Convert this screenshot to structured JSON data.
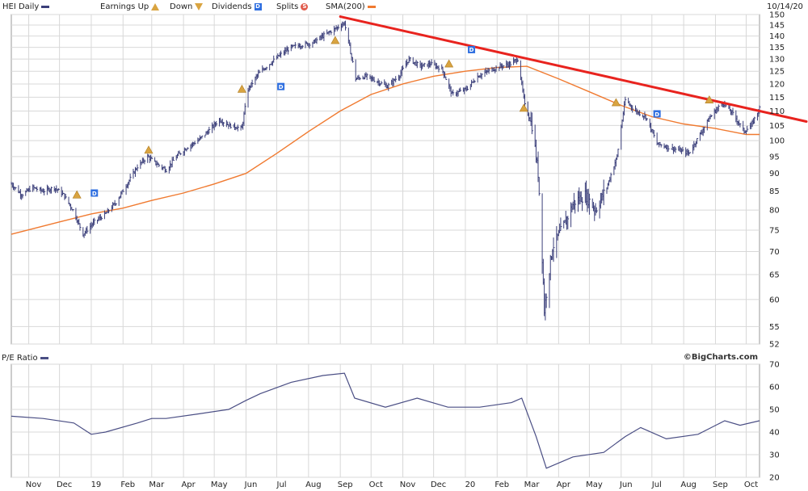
{
  "legend": {
    "symbol_label": "HEI Daily",
    "earnings_up_label": "Earnings Up",
    "earnings_down_label": "Down",
    "dividends_label": "Dividends",
    "dividend_marker": "D",
    "splits_label": "Splits",
    "split_marker": "S",
    "sma_label": "SMA(200)",
    "date": "10/14/20"
  },
  "pe_panel": {
    "label": "P/E Ratio"
  },
  "credit": "©BigCharts.com",
  "colors": {
    "price_bars": "#3b3f7a",
    "sma": "#f07a30",
    "trendline": "#e8231e",
    "earnings_marker": "#d9a441",
    "dividend_marker": "#2f6fe0",
    "grid": "#d8d8d8",
    "pe_line": "#4a4e84"
  },
  "chart_data": [
    {
      "type": "ohlc",
      "title": "HEI Daily",
      "y_scale": "log",
      "ylim": [
        52,
        150
      ],
      "y_ticks": [
        150,
        145,
        140,
        135,
        130,
        125,
        120,
        115,
        110,
        105,
        100,
        95,
        90,
        85,
        80,
        75,
        70,
        65,
        60,
        55,
        52
      ],
      "x_ticks": [
        {
          "label": "Nov",
          "date": "2018-11-01"
        },
        {
          "label": "Dec",
          "date": "2018-12-01"
        },
        {
          "label": "19",
          "date": "2019-01-01"
        },
        {
          "label": "Feb",
          "date": "2019-02-01"
        },
        {
          "label": "Mar",
          "date": "2019-03-01"
        },
        {
          "label": "Apr",
          "date": "2019-04-01"
        },
        {
          "label": "May",
          "date": "2019-05-01"
        },
        {
          "label": "Jun",
          "date": "2019-06-01"
        },
        {
          "label": "Jul",
          "date": "2019-07-01"
        },
        {
          "label": "Aug",
          "date": "2019-08-01"
        },
        {
          "label": "Sep",
          "date": "2019-09-01"
        },
        {
          "label": "Oct",
          "date": "2019-10-01"
        },
        {
          "label": "Nov",
          "date": "2019-11-01"
        },
        {
          "label": "Dec",
          "date": "2019-12-01"
        },
        {
          "label": "20",
          "date": "2020-01-01"
        },
        {
          "label": "Feb",
          "date": "2020-02-01"
        },
        {
          "label": "Mar",
          "date": "2020-03-01"
        },
        {
          "label": "Apr",
          "date": "2020-04-01"
        },
        {
          "label": "May",
          "date": "2020-05-01"
        },
        {
          "label": "Jun",
          "date": "2020-06-01"
        },
        {
          "label": "Jul",
          "date": "2020-07-01"
        },
        {
          "label": "Aug",
          "date": "2020-08-01"
        },
        {
          "label": "Sep",
          "date": "2020-09-01"
        },
        {
          "label": "Oct",
          "date": "2020-10-01"
        }
      ],
      "xlim": [
        "2018-10-15",
        "2020-10-14"
      ],
      "price_series": {
        "name": "HEI Daily",
        "points": [
          [
            "2018-10-15",
            87
          ],
          [
            "2018-10-25",
            84
          ],
          [
            "2018-11-05",
            86
          ],
          [
            "2018-11-15",
            85
          ],
          [
            "2018-11-26",
            86
          ],
          [
            "2018-12-05",
            84
          ],
          [
            "2018-12-14",
            80
          ],
          [
            "2018-12-24",
            74
          ],
          [
            "2019-01-04",
            77
          ],
          [
            "2019-01-15",
            79
          ],
          [
            "2019-01-25",
            82
          ],
          [
            "2019-02-05",
            87
          ],
          [
            "2019-02-15",
            92
          ],
          [
            "2019-02-25",
            95
          ],
          [
            "2019-03-05",
            93
          ],
          [
            "2019-03-15",
            91
          ],
          [
            "2019-03-25",
            95
          ],
          [
            "2019-04-05",
            98
          ],
          [
            "2019-04-15",
            100
          ],
          [
            "2019-04-25",
            103
          ],
          [
            "2019-05-06",
            107
          ],
          [
            "2019-05-16",
            105
          ],
          [
            "2019-05-28",
            104
          ],
          [
            "2019-06-03",
            118
          ],
          [
            "2019-06-13",
            124
          ],
          [
            "2019-06-24",
            128
          ],
          [
            "2019-07-05",
            132
          ],
          [
            "2019-07-15",
            135
          ],
          [
            "2019-07-25",
            136
          ],
          [
            "2019-08-05",
            137
          ],
          [
            "2019-08-15",
            140
          ],
          [
            "2019-08-26",
            143
          ],
          [
            "2019-09-05",
            146
          ],
          [
            "2019-09-16",
            122
          ],
          [
            "2019-09-26",
            123
          ],
          [
            "2019-10-07",
            121
          ],
          [
            "2019-10-17",
            119
          ],
          [
            "2019-10-28",
            123
          ],
          [
            "2019-11-07",
            130
          ],
          [
            "2019-11-18",
            127
          ],
          [
            "2019-11-28",
            128
          ],
          [
            "2019-12-09",
            126
          ],
          [
            "2019-12-19",
            116
          ],
          [
            "2020-01-02",
            118
          ],
          [
            "2020-01-13",
            123
          ],
          [
            "2020-01-23",
            125
          ],
          [
            "2020-02-04",
            127
          ],
          [
            "2020-02-14",
            128
          ],
          [
            "2020-02-21",
            130
          ],
          [
            "2020-02-28",
            112
          ],
          [
            "2020-03-06",
            105
          ],
          [
            "2020-03-12",
            90
          ],
          [
            "2020-03-18",
            58
          ],
          [
            "2020-03-26",
            71
          ],
          [
            "2020-04-06",
            76
          ],
          [
            "2020-04-16",
            82
          ],
          [
            "2020-04-27",
            84
          ],
          [
            "2020-05-07",
            80
          ],
          [
            "2020-05-18",
            86
          ],
          [
            "2020-05-28",
            95
          ],
          [
            "2020-06-05",
            114
          ],
          [
            "2020-06-15",
            110
          ],
          [
            "2020-06-25",
            108
          ],
          [
            "2020-07-06",
            99
          ],
          [
            "2020-07-16",
            98
          ],
          [
            "2020-07-27",
            97
          ],
          [
            "2020-08-06",
            96
          ],
          [
            "2020-08-17",
            102
          ],
          [
            "2020-08-27",
            108
          ],
          [
            "2020-09-08",
            113
          ],
          [
            "2020-09-18",
            109
          ],
          [
            "2020-09-29",
            103
          ],
          [
            "2020-10-06",
            105
          ],
          [
            "2020-10-14",
            111
          ]
        ]
      },
      "sma_series": {
        "name": "SMA(200)",
        "points": [
          [
            "2018-10-15",
            74
          ],
          [
            "2018-12-01",
            77
          ],
          [
            "2019-01-01",
            79
          ],
          [
            "2019-02-01",
            80.5
          ],
          [
            "2019-03-01",
            82.5
          ],
          [
            "2019-04-01",
            84.5
          ],
          [
            "2019-05-01",
            87
          ],
          [
            "2019-06-01",
            90
          ],
          [
            "2019-07-01",
            96
          ],
          [
            "2019-08-01",
            103
          ],
          [
            "2019-09-01",
            110
          ],
          [
            "2019-10-01",
            116
          ],
          [
            "2019-11-01",
            120
          ],
          [
            "2019-12-01",
            123
          ],
          [
            "2020-01-01",
            125
          ],
          [
            "2020-02-01",
            126.5
          ],
          [
            "2020-03-01",
            127
          ],
          [
            "2020-04-01",
            122
          ],
          [
            "2020-05-01",
            117
          ],
          [
            "2020-06-01",
            112
          ],
          [
            "2020-07-01",
            108
          ],
          [
            "2020-08-01",
            105.5
          ],
          [
            "2020-09-01",
            104
          ],
          [
            "2020-10-01",
            102
          ],
          [
            "2020-10-14",
            102
          ]
        ]
      },
      "trendline": {
        "points": [
          [
            "2019-09-01",
            149
          ],
          [
            "2020-10-14",
            110
          ]
        ],
        "extend_to_edge": true
      },
      "earnings_markers": [
        {
          "date": "2018-12-18",
          "price": 84,
          "dir": "up"
        },
        {
          "date": "2019-02-26",
          "price": 97,
          "dir": "up"
        },
        {
          "date": "2019-05-28",
          "price": 118,
          "dir": "up"
        },
        {
          "date": "2019-08-27",
          "price": 138,
          "dir": "up"
        },
        {
          "date": "2019-12-16",
          "price": 128,
          "dir": "up"
        },
        {
          "date": "2020-02-27",
          "price": 111,
          "dir": "up"
        },
        {
          "date": "2020-05-27",
          "price": 113,
          "dir": "up"
        },
        {
          "date": "2020-08-26",
          "price": 114,
          "dir": "up"
        }
      ],
      "dividend_markers": [
        {
          "date": "2019-01-04",
          "price": 84.5
        },
        {
          "date": "2019-07-05",
          "price": 119
        },
        {
          "date": "2020-01-07",
          "price": 134
        },
        {
          "date": "2020-07-06",
          "price": 109
        }
      ]
    },
    {
      "type": "line",
      "title": "P/E Ratio",
      "ylim": [
        20,
        70
      ],
      "y_ticks": [
        70,
        60,
        50,
        40,
        30,
        20
      ],
      "series": [
        {
          "name": "P/E Ratio",
          "points": [
            [
              "2018-10-15",
              47
            ],
            [
              "2018-11-15",
              46
            ],
            [
              "2018-12-15",
              44
            ],
            [
              "2019-01-01",
              39
            ],
            [
              "2019-01-15",
              40
            ],
            [
              "2019-02-15",
              44
            ],
            [
              "2019-03-01",
              46
            ],
            [
              "2019-03-15",
              46
            ],
            [
              "2019-04-15",
              48
            ],
            [
              "2019-05-15",
              50
            ],
            [
              "2019-06-01",
              54
            ],
            [
              "2019-06-15",
              57
            ],
            [
              "2019-07-15",
              62
            ],
            [
              "2019-08-15",
              65
            ],
            [
              "2019-09-05",
              66
            ],
            [
              "2019-09-15",
              55
            ],
            [
              "2019-10-15",
              51
            ],
            [
              "2019-11-15",
              55
            ],
            [
              "2019-12-15",
              51
            ],
            [
              "2020-01-15",
              51
            ],
            [
              "2020-02-15",
              53
            ],
            [
              "2020-02-25",
              55
            ],
            [
              "2020-03-10",
              38
            ],
            [
              "2020-03-20",
              24
            ],
            [
              "2020-04-15",
              29
            ],
            [
              "2020-05-15",
              31
            ],
            [
              "2020-06-05",
              38
            ],
            [
              "2020-06-20",
              42
            ],
            [
              "2020-07-15",
              37
            ],
            [
              "2020-08-15",
              39
            ],
            [
              "2020-09-10",
              45
            ],
            [
              "2020-09-25",
              43
            ],
            [
              "2020-10-14",
              45
            ]
          ]
        }
      ]
    }
  ]
}
